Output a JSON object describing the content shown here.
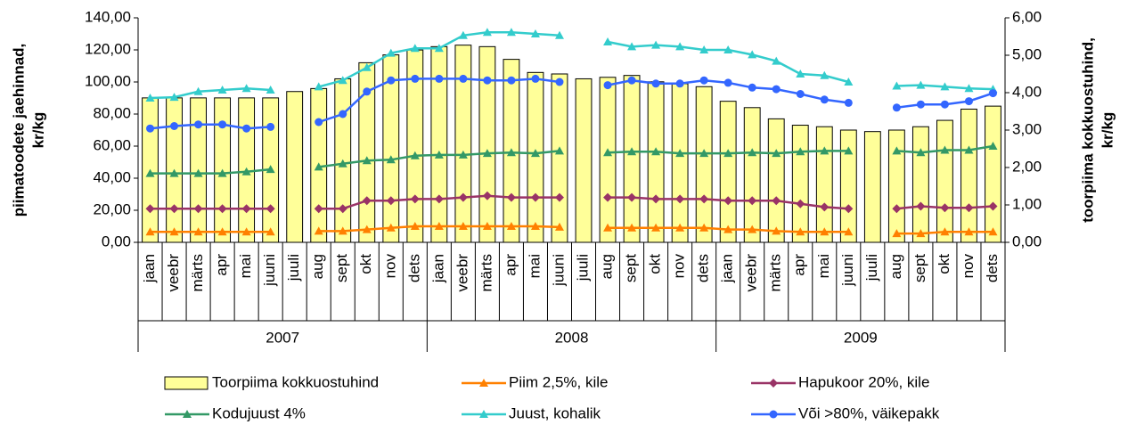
{
  "chart_data": {
    "type": "combo",
    "ylabel": [
      "piimatoodete jaehinnad,",
      "kr/kg"
    ],
    "y2label": [
      "toorpiima kokkuostuhind,",
      "kr/kg"
    ],
    "categories": [
      "jaan",
      "veebr",
      "märts",
      "apr",
      "mai",
      "juuni",
      "juuli",
      "aug",
      "sept",
      "okt",
      "nov",
      "dets",
      "jaan",
      "veebr",
      "märts",
      "apr",
      "mai",
      "juuni",
      "juuli",
      "aug",
      "sept",
      "okt",
      "nov",
      "dets",
      "jaan",
      "veebr",
      "märts",
      "apr",
      "mai",
      "juuni",
      "juuli",
      "aug",
      "sept",
      "okt",
      "nov",
      "dets"
    ],
    "groups": [
      "2007",
      "2008",
      "2009"
    ],
    "ylim": [
      0,
      140
    ],
    "yticks": [
      {
        "value": 0,
        "label": "0,00"
      },
      {
        "value": 20,
        "label": "20,00"
      },
      {
        "value": 40,
        "label": "40,00"
      },
      {
        "value": 60,
        "label": "60,00"
      },
      {
        "value": 80,
        "label": "80,00"
      },
      {
        "value": 100,
        "label": "100,00"
      },
      {
        "value": 120,
        "label": "120,00"
      },
      {
        "value": 140,
        "label": "140,00"
      }
    ],
    "y2lim": [
      0,
      6
    ],
    "y2ticks": [
      {
        "value": 0,
        "label": "0,00"
      },
      {
        "value": 1,
        "label": "1,00"
      },
      {
        "value": 2,
        "label": "2,00"
      },
      {
        "value": 3,
        "label": "3,00"
      },
      {
        "value": 4,
        "label": "4,00"
      },
      {
        "value": 5,
        "label": "5,00"
      },
      {
        "value": 6,
        "label": "6,00"
      }
    ],
    "series": [
      {
        "name": "Toorpiima kokkuostuhind",
        "type": "bar",
        "axis": "y2",
        "color": "#ffff99",
        "values": [
          3.86,
          3.86,
          3.86,
          3.86,
          3.86,
          3.86,
          4.03,
          4.11,
          4.37,
          4.8,
          5.01,
          5.14,
          5.23,
          5.27,
          5.23,
          4.89,
          4.54,
          4.5,
          4.37,
          4.41,
          4.46,
          4.29,
          4.24,
          4.16,
          3.77,
          3.6,
          3.3,
          3.13,
          3.09,
          3.0,
          2.96,
          3.0,
          3.09,
          3.26,
          3.56,
          3.64
        ]
      },
      {
        "name": "Piim 2,5%, kile",
        "type": "line",
        "marker": "triangle",
        "color": "#ff8000",
        "values": [
          6.5,
          6.5,
          6.5,
          6.5,
          6.5,
          6.5,
          null,
          7,
          7,
          8,
          9,
          10,
          10,
          10,
          10,
          10,
          10,
          9.5,
          null,
          9,
          9,
          9,
          9,
          9,
          8,
          8,
          7,
          6.5,
          6.5,
          6.5,
          null,
          5.5,
          5.5,
          6.5,
          6.5,
          6.5
        ]
      },
      {
        "name": "Hapukoor 20%, kile",
        "type": "line",
        "marker": "diamond",
        "color": "#993366",
        "values": [
          21,
          21,
          21,
          21,
          21,
          21,
          null,
          21,
          21,
          26,
          26,
          27,
          27,
          28,
          29,
          28,
          28,
          28,
          null,
          28,
          28,
          27,
          27,
          27,
          26,
          26,
          26,
          24,
          22,
          21,
          null,
          21,
          22.5,
          21.5,
          21.5,
          22.5
        ]
      },
      {
        "name": "Kodujuust 4%",
        "type": "line",
        "marker": "triangle",
        "color": "#339966",
        "values": [
          43,
          43,
          43,
          43,
          44,
          45.5,
          null,
          47,
          49,
          51,
          51.5,
          54,
          54.5,
          54.5,
          55.5,
          56,
          55.5,
          57,
          null,
          56,
          56.5,
          56.5,
          55.5,
          55.5,
          55.5,
          56,
          55.5,
          56.5,
          57,
          57,
          null,
          57,
          56,
          57.5,
          57.5,
          60
        ]
      },
      {
        "name": "Juust, kohalik",
        "type": "line",
        "marker": "triangle",
        "color": "#33cccc",
        "values": [
          90,
          90.5,
          94,
          95,
          96,
          95,
          null,
          97,
          101,
          109,
          118,
          121,
          121,
          129,
          131,
          131,
          130,
          129,
          null,
          125,
          122,
          123,
          122,
          120,
          120,
          117,
          113,
          105,
          104,
          100,
          null,
          97.5,
          98,
          97,
          96,
          95.5
        ]
      },
      {
        "name": "Või >80%, väikepakk",
        "type": "line",
        "marker": "circle",
        "color": "#3366ff",
        "values": [
          71,
          72.5,
          73.5,
          73.5,
          71,
          72,
          null,
          75,
          80,
          94,
          101,
          102,
          102,
          102,
          101,
          101,
          102,
          100,
          null,
          98,
          101,
          99,
          99,
          101,
          99.5,
          96.5,
          95.5,
          92.5,
          89,
          87,
          null,
          84,
          86,
          86,
          88,
          93
        ]
      }
    ]
  }
}
